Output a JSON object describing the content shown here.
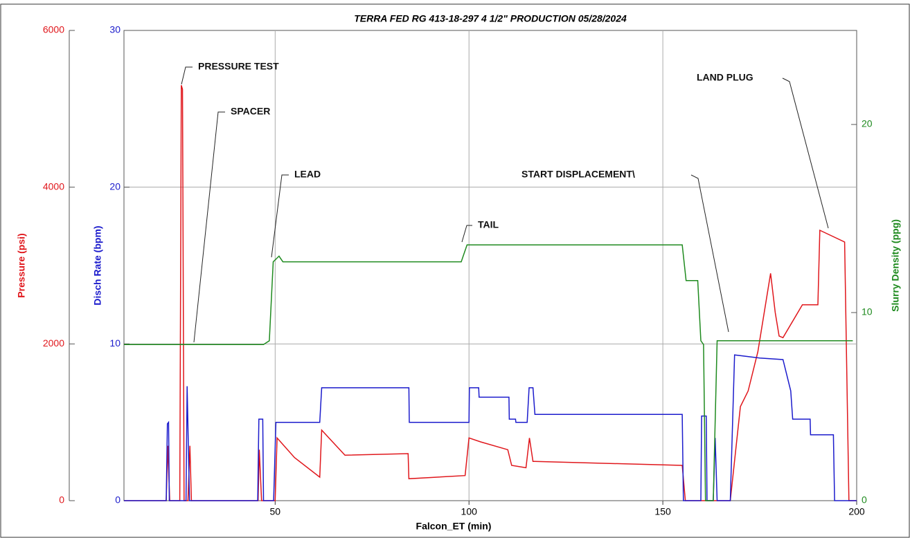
{
  "chart_data": {
    "type": "line",
    "title": "TERRA FED RG 413-18-297 4 1/2\" PRODUCTION 05/28/2024",
    "xlabel": "Falcon_ET (min)",
    "ylabel": "Pressure (psi)",
    "y1label": "Disch Rate (bpm)",
    "y2label": "Slurry Density (ppg)",
    "xlim": [
      11,
      200
    ],
    "xticks": [
      50,
      100,
      150,
      200
    ],
    "ylim": [
      0,
      6000
    ],
    "yticks": [
      0,
      2000,
      4000,
      6000
    ],
    "y1lim": [
      0,
      30
    ],
    "y1ticks": [
      0,
      10,
      20,
      30
    ],
    "y2lim": [
      0,
      25
    ],
    "y2ticks": [
      0,
      10,
      20
    ],
    "grid": true,
    "series": [
      {
        "name": "Pressure",
        "color": "#e0161b",
        "axis": "y",
        "x": [
          11,
          21.9,
          22.3,
          22.8,
          25.4,
          25.8,
          26.1,
          26.5,
          27.5,
          28,
          28.4,
          45.6,
          45.9,
          46.5,
          50,
          50.5,
          55,
          61.5,
          62,
          68,
          84.3,
          84.5,
          99,
          100,
          103,
          110,
          111,
          114.7,
          115.6,
          116.5,
          117,
          155,
          155.8,
          167.4,
          170,
          172,
          174.5,
          177.8,
          179,
          180,
          181,
          186,
          190,
          190.5,
          196.9,
          198,
          200
        ],
        "values": [
          0,
          0,
          700,
          0,
          0,
          5300,
          5250,
          0,
          0,
          700,
          0,
          0,
          650,
          0,
          0,
          800,
          550,
          300,
          900,
          580,
          600,
          280,
          320,
          800,
          750,
          650,
          450,
          420,
          800,
          500,
          500,
          450,
          0,
          0,
          1200,
          1400,
          1900,
          2900,
          2400,
          2100,
          2080,
          2500,
          2500,
          3450,
          3300,
          0,
          0
        ]
      },
      {
        "name": "Disch Rate",
        "color": "#1b1bcc",
        "axis": "y1",
        "x": [
          11,
          21.9,
          22.2,
          22.5,
          22.7,
          27,
          27.3,
          27.9,
          45.5,
          45.8,
          46.8,
          47,
          49.6,
          50.2,
          61.5,
          62,
          84.5,
          84.6,
          100,
          100.1,
          102.5,
          102.6,
          110.3,
          110.4,
          112,
          112.1,
          115,
          115.5,
          116.5,
          117,
          155,
          155.3,
          159.8,
          160,
          161.2,
          161.4,
          163,
          163.5,
          164,
          167.4,
          168.5,
          175,
          181,
          183,
          183.5,
          188,
          188.1,
          194,
          194.3,
          200
        ],
        "values": [
          0,
          0,
          4.9,
          5,
          0,
          0,
          7.3,
          0,
          0,
          5.2,
          5.2,
          0,
          0,
          5,
          5,
          7.2,
          7.2,
          5,
          5,
          7.2,
          7.2,
          6.6,
          6.6,
          5.2,
          5.2,
          5,
          5,
          7.2,
          7.2,
          5.5,
          5.5,
          0,
          0,
          5.4,
          5.4,
          0,
          0,
          4,
          0,
          0,
          9.3,
          9.1,
          9,
          7,
          5.2,
          5.2,
          4.2,
          4.2,
          0,
          0
        ]
      },
      {
        "name": "Slurry Density",
        "color": "#1e8a1e",
        "axis": "y2",
        "x": [
          11,
          47,
          48.5,
          49.5,
          51,
          52,
          98,
          98.5,
          99.5,
          155,
          156,
          159,
          159.8,
          160.5,
          161,
          163,
          164,
          199
        ],
        "values": [
          8.3,
          8.3,
          8.5,
          12.7,
          13,
          12.7,
          12.7,
          13,
          13.6,
          13.6,
          11.7,
          11.7,
          8.5,
          8.3,
          0,
          0,
          8.5,
          8.5
        ]
      }
    ],
    "annotations": [
      "PRESSURE TEST",
      "SPACER",
      "LEAD",
      "TAIL",
      "START DISPLACEMENT\\",
      "LAND PLUG"
    ]
  }
}
